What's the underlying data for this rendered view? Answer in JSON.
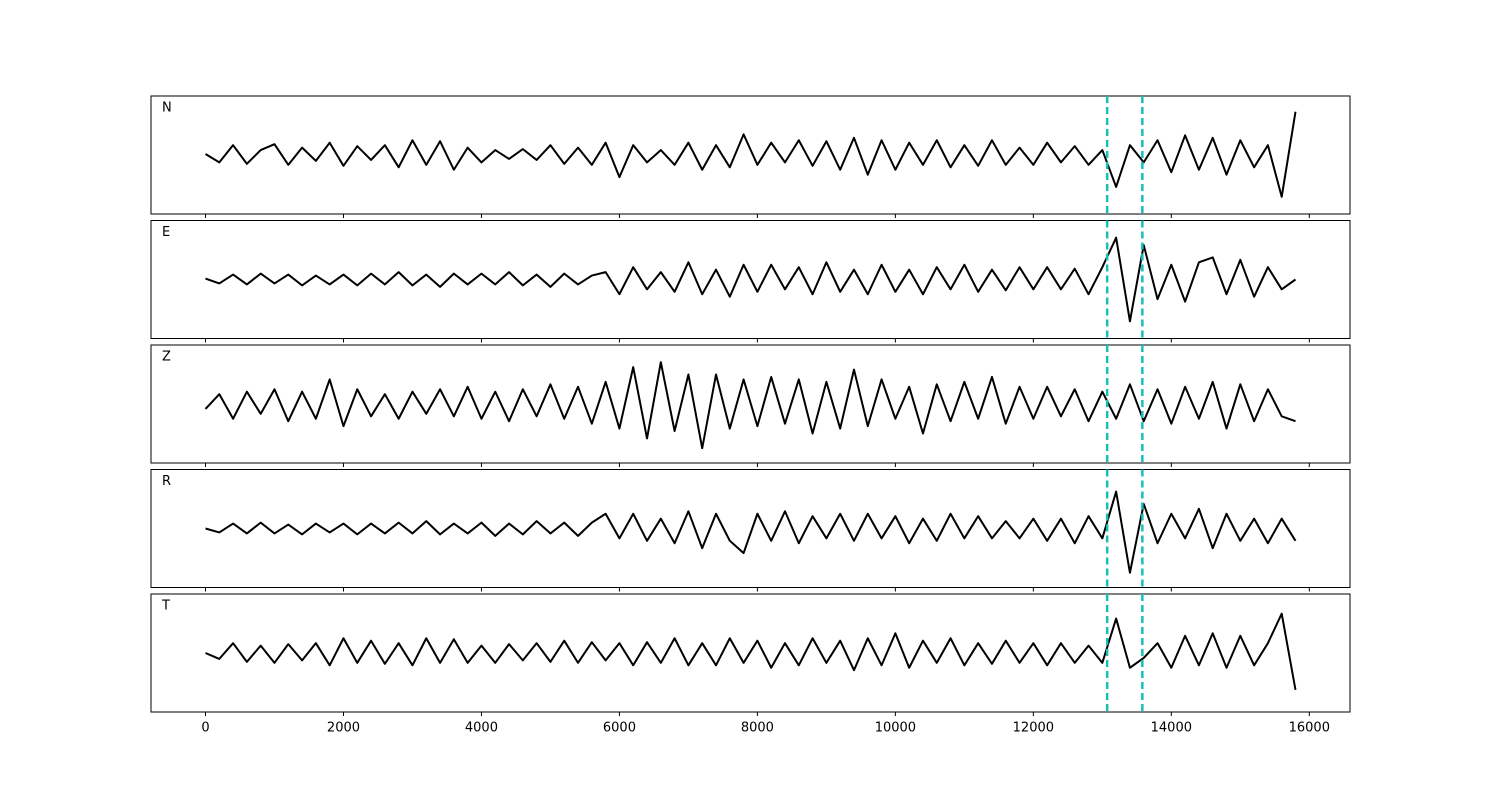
{
  "chart_data": {
    "type": "line",
    "layout": "stacked",
    "x": [
      0,
      200,
      400,
      600,
      800,
      1000,
      1200,
      1400,
      1600,
      1800,
      2000,
      2200,
      2400,
      2600,
      2800,
      3000,
      3200,
      3400,
      3600,
      3800,
      4000,
      4200,
      4400,
      4600,
      4800,
      5000,
      5200,
      5400,
      5600,
      5800,
      6000,
      6200,
      6400,
      6600,
      6800,
      7000,
      7200,
      7400,
      7600,
      7800,
      8000,
      8200,
      8400,
      8600,
      8800,
      9000,
      9200,
      9400,
      9600,
      9800,
      10000,
      10200,
      10400,
      10600,
      10800,
      11000,
      11200,
      11400,
      11600,
      11800,
      12000,
      12200,
      12400,
      12600,
      12800,
      13000,
      13200,
      13400,
      13600,
      13800,
      14000,
      14200,
      14400,
      14600,
      14800,
      15000,
      15200,
      15400,
      15600,
      15800
    ],
    "xlim": [
      -790,
      16590
    ],
    "xticks": [
      0,
      2000,
      4000,
      6000,
      8000,
      10000,
      12000,
      14000,
      16000
    ],
    "ylim": [
      -1.2,
      1.2
    ],
    "vlines": [
      13070,
      13580
    ],
    "vline_color": "#17bebb",
    "series": [
      {
        "name": "N",
        "color": "#000000",
        "values": [
          0.02,
          -0.15,
          0.2,
          -0.18,
          0.1,
          0.22,
          -0.2,
          0.15,
          -0.12,
          0.25,
          -0.22,
          0.18,
          -0.1,
          0.2,
          -0.25,
          0.3,
          -0.2,
          0.28,
          -0.3,
          0.15,
          -0.15,
          0.1,
          -0.08,
          0.12,
          -0.1,
          0.2,
          -0.18,
          0.15,
          -0.2,
          0.25,
          -0.45,
          0.2,
          -0.15,
          0.1,
          -0.2,
          0.25,
          -0.3,
          0.2,
          -0.25,
          0.42,
          -0.2,
          0.25,
          -0.15,
          0.3,
          -0.22,
          0.28,
          -0.3,
          0.35,
          -0.4,
          0.3,
          -0.3,
          0.25,
          -0.2,
          0.3,
          -0.25,
          0.2,
          -0.22,
          0.3,
          -0.2,
          0.15,
          -0.2,
          0.25,
          -0.15,
          0.18,
          -0.2,
          0.1,
          -0.65,
          0.2,
          -0.15,
          0.3,
          -0.35,
          0.4,
          -0.3,
          0.35,
          -0.4,
          0.3,
          -0.25,
          0.2,
          -0.85,
          0.88
        ]
      },
      {
        "name": "E",
        "color": "#000000",
        "values": [
          0.02,
          -0.08,
          0.1,
          -0.1,
          0.12,
          -0.08,
          0.1,
          -0.12,
          0.08,
          -0.1,
          0.1,
          -0.12,
          0.12,
          -0.1,
          0.15,
          -0.12,
          0.1,
          -0.15,
          0.12,
          -0.1,
          0.12,
          -0.1,
          0.15,
          -0.12,
          0.1,
          -0.15,
          0.12,
          -0.1,
          0.08,
          0.15,
          -0.3,
          0.25,
          -0.2,
          0.15,
          -0.25,
          0.35,
          -0.3,
          0.2,
          -0.35,
          0.3,
          -0.25,
          0.3,
          -0.2,
          0.25,
          -0.3,
          0.35,
          -0.25,
          0.2,
          -0.3,
          0.3,
          -0.25,
          0.2,
          -0.3,
          0.25,
          -0.2,
          0.3,
          -0.25,
          0.2,
          -0.22,
          0.25,
          -0.2,
          0.25,
          -0.2,
          0.22,
          -0.3,
          0.25,
          0.85,
          -0.85,
          0.7,
          -0.4,
          0.3,
          -0.45,
          0.35,
          0.45,
          -0.3,
          0.4,
          -0.35,
          0.25,
          -0.2,
          0.0
        ]
      },
      {
        "name": "Z",
        "color": "#000000",
        "values": [
          -0.1,
          0.2,
          -0.3,
          0.25,
          -0.2,
          0.3,
          -0.35,
          0.25,
          -0.3,
          0.5,
          -0.45,
          0.3,
          -0.25,
          0.2,
          -0.3,
          0.25,
          -0.2,
          0.3,
          -0.25,
          0.35,
          -0.3,
          0.25,
          -0.35,
          0.3,
          -0.25,
          0.4,
          -0.3,
          0.35,
          -0.4,
          0.45,
          -0.5,
          0.75,
          -0.7,
          0.85,
          -0.55,
          0.6,
          -0.9,
          0.6,
          -0.5,
          0.5,
          -0.45,
          0.55,
          -0.4,
          0.5,
          -0.6,
          0.45,
          -0.5,
          0.7,
          -0.45,
          0.5,
          -0.3,
          0.35,
          -0.6,
          0.4,
          -0.35,
          0.45,
          -0.3,
          0.55,
          -0.4,
          0.35,
          -0.3,
          0.35,
          -0.25,
          0.3,
          -0.35,
          0.25,
          -0.3,
          0.4,
          -0.35,
          0.3,
          -0.4,
          0.35,
          -0.3,
          0.45,
          -0.5,
          0.4,
          -0.35,
          0.3,
          -0.25,
          -0.35
        ]
      },
      {
        "name": "R",
        "color": "#000000",
        "values": [
          0.0,
          -0.08,
          0.1,
          -0.1,
          0.12,
          -0.1,
          0.08,
          -0.12,
          0.1,
          -0.08,
          0.1,
          -0.12,
          0.1,
          -0.1,
          0.12,
          -0.1,
          0.15,
          -0.12,
          0.1,
          -0.1,
          0.12,
          -0.15,
          0.1,
          -0.12,
          0.15,
          -0.1,
          0.12,
          -0.15,
          0.12,
          0.3,
          -0.2,
          0.3,
          -0.25,
          0.2,
          -0.3,
          0.35,
          -0.4,
          0.3,
          -0.25,
          -0.5,
          0.3,
          -0.25,
          0.35,
          -0.3,
          0.25,
          -0.2,
          0.3,
          -0.25,
          0.3,
          -0.2,
          0.25,
          -0.3,
          0.2,
          -0.25,
          0.3,
          -0.2,
          0.25,
          -0.2,
          0.15,
          -0.2,
          0.2,
          -0.25,
          0.2,
          -0.3,
          0.25,
          -0.2,
          0.75,
          -0.9,
          0.5,
          -0.3,
          0.3,
          -0.2,
          0.4,
          -0.4,
          0.3,
          -0.25,
          0.2,
          -0.3,
          0.2,
          -0.25
        ]
      },
      {
        "name": "T",
        "color": "#000000",
        "values": [
          0.0,
          -0.12,
          0.2,
          -0.18,
          0.15,
          -0.2,
          0.18,
          -0.15,
          0.2,
          -0.25,
          0.3,
          -0.2,
          0.25,
          -0.22,
          0.2,
          -0.25,
          0.3,
          -0.2,
          0.28,
          -0.2,
          0.15,
          -0.2,
          0.18,
          -0.15,
          0.2,
          -0.18,
          0.25,
          -0.2,
          0.22,
          -0.15,
          0.2,
          -0.25,
          0.22,
          -0.2,
          0.3,
          -0.25,
          0.2,
          -0.25,
          0.3,
          -0.2,
          0.25,
          -0.3,
          0.2,
          -0.25,
          0.3,
          -0.2,
          0.25,
          -0.35,
          0.3,
          -0.25,
          0.4,
          -0.3,
          0.25,
          -0.2,
          0.3,
          -0.25,
          0.2,
          -0.22,
          0.25,
          -0.2,
          0.2,
          -0.25,
          0.2,
          -0.2,
          0.15,
          -0.2,
          0.7,
          -0.3,
          -0.1,
          0.2,
          -0.3,
          0.35,
          -0.25,
          0.4,
          -0.3,
          0.35,
          -0.25,
          0.2,
          0.8,
          -0.75
        ]
      }
    ]
  }
}
